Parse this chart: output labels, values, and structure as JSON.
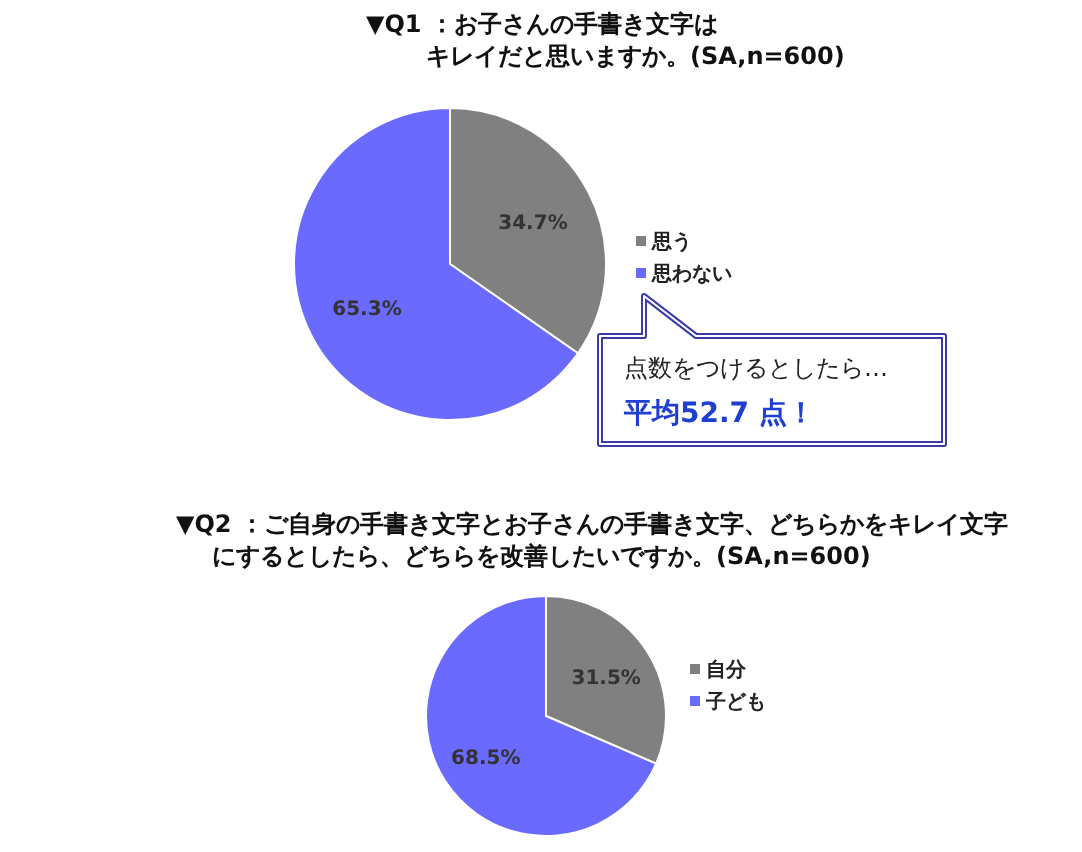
{
  "chart_data": [
    {
      "type": "pie",
      "title": "▼Q1 ：お子さんの手書き文字はキレイだと思いますか。(SA,n=600)",
      "categories": [
        "思う",
        "思わない"
      ],
      "values": [
        34.7,
        65.3
      ],
      "value_labels": [
        "34.7%",
        "65.3%"
      ],
      "colors": [
        "#808080",
        "#6a6aff"
      ],
      "legend": "right",
      "annotations": [
        "点数をつけるとしたら…",
        "平均52.7 点！"
      ]
    },
    {
      "type": "pie",
      "title": "▼Q2 ：ご自身の手書き文字とお子さんの手書き文字、どちらかをキレイ文字にするとしたら、どちらを改善したいですか。(SA,n=600)",
      "categories": [
        "自分",
        "子ども"
      ],
      "values": [
        31.5,
        68.5
      ],
      "value_labels": [
        "31.5%",
        "68.5%"
      ],
      "colors": [
        "#808080",
        "#6a6aff"
      ],
      "legend": "right"
    }
  ]
}
